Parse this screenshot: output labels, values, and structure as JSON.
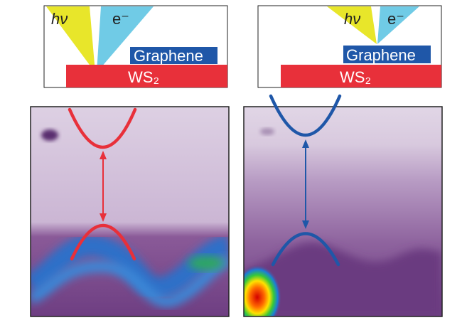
{
  "panels": [
    {
      "photon": "hν",
      "electron": "e⁻",
      "top_layer": "Graphene",
      "substrate": "WS₂"
    },
    {
      "photon": "hν",
      "electron": "e⁻",
      "top_layer": "Graphene",
      "substrate": "WS₂"
    }
  ]
}
